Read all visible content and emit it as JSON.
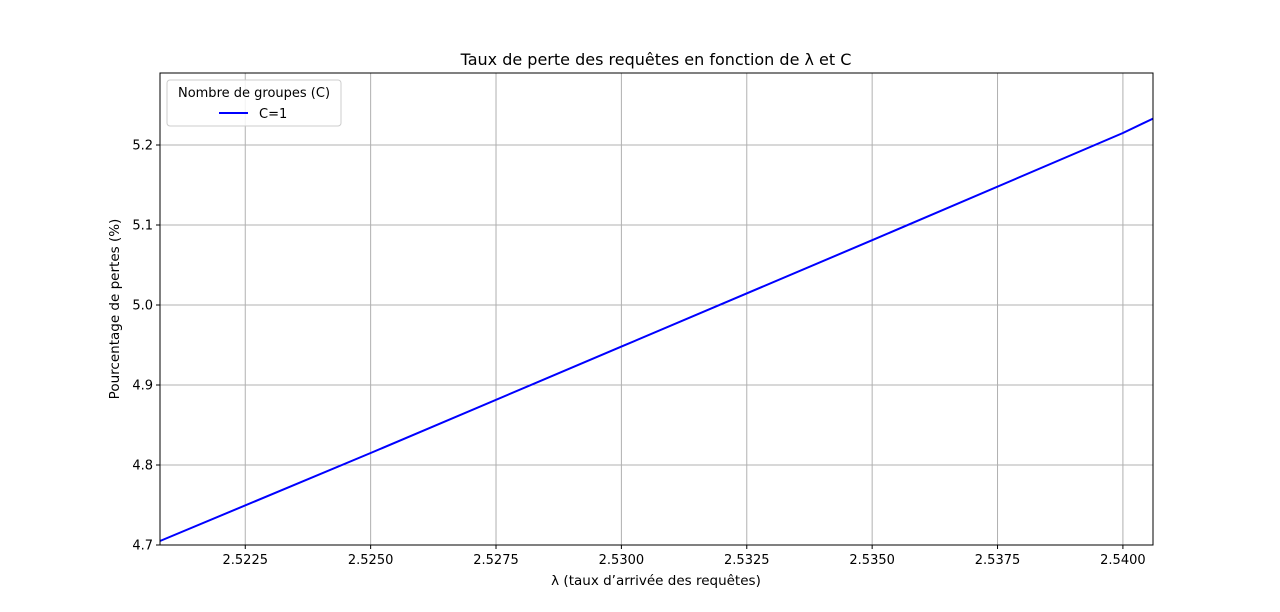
{
  "chart_data": {
    "type": "line",
    "title": "Taux de perte des requêtes en fonction de λ et C",
    "xlabel": "λ (taux d’arrivée des requêtes)",
    "ylabel": "Pourcentage de pertes (%)",
    "xlim": [
      2.5208,
      2.5406
    ],
    "ylim": [
      4.7,
      5.29
    ],
    "xticks": [
      2.5225,
      2.525,
      2.5275,
      2.53,
      2.5325,
      2.535,
      2.5375,
      2.54
    ],
    "xtick_labels": [
      "2.5225",
      "2.5250",
      "2.5275",
      "2.5300",
      "2.5325",
      "2.5350",
      "2.5375",
      "2.5400"
    ],
    "yticks": [
      4.7,
      4.8,
      4.9,
      5.0,
      5.1,
      5.2
    ],
    "ytick_labels": [
      "4.7",
      "4.8",
      "4.9",
      "5.0",
      "5.1",
      "5.2"
    ],
    "grid": true,
    "legend": {
      "title": "Nombre de groupes (C)",
      "placement": "top-left"
    },
    "series": [
      {
        "name": "C=1",
        "color": "#0000ff",
        "x": [
          2.5208,
          2.525,
          2.53,
          2.535,
          2.54,
          2.5406
        ],
        "y": [
          4.705,
          4.815,
          4.948,
          5.081,
          5.215,
          5.233
        ]
      }
    ]
  }
}
